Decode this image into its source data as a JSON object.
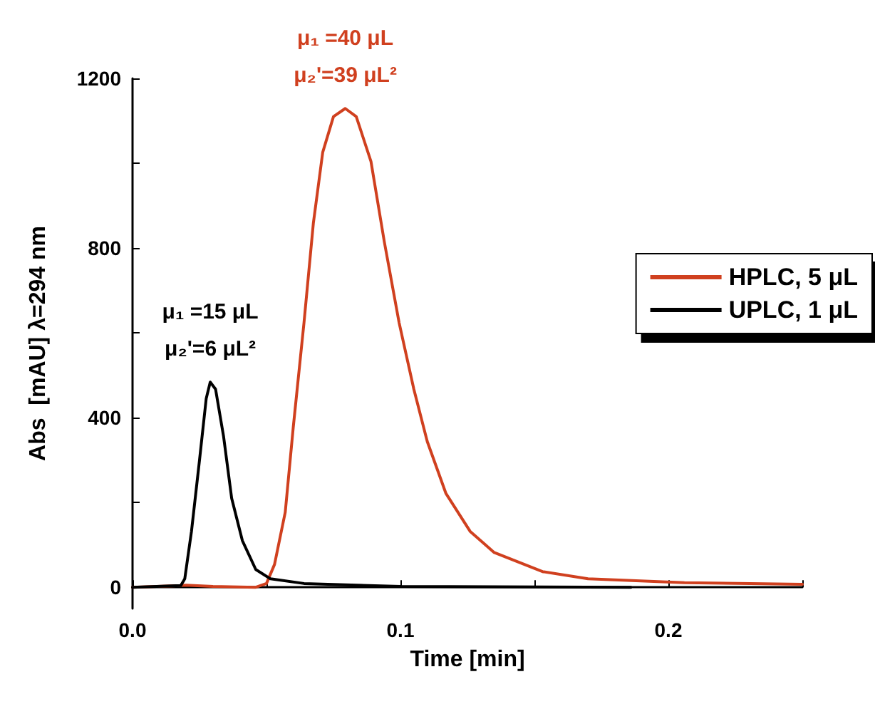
{
  "chart_data": {
    "type": "line",
    "xlabel": "Time [min]",
    "ylabel": "Abs  [mAU] λ=294 nm",
    "xlim": [
      0,
      0.25
    ],
    "xticks": [
      {
        "value": 0,
        "label": "0.0"
      },
      0.1,
      0.2,
      {
        "value": 0.05,
        "label": null
      },
      {
        "value": 0.15,
        "label": null
      },
      {
        "value": 0.25,
        "label": null
      }
    ],
    "ylim": [
      -50,
      1200
    ],
    "yticks": [
      0,
      400,
      800,
      1200,
      {
        "value": 200,
        "label": null
      },
      {
        "value": 600,
        "label": null
      },
      {
        "value": 1000,
        "label": null
      }
    ],
    "grid": false,
    "legend": "top right",
    "marker": "none",
    "line_style": "solid",
    "series": [
      {
        "name": "HPLC, 5 μL",
        "color": "#d0401f",
        "x": [
          0,
          0.018,
          0.02,
          0.03,
          0.046,
          0.05,
          0.053,
          0.057,
          0.06,
          0.064,
          0.0675,
          0.071,
          0.075,
          0.0794,
          0.0835,
          0.089,
          0.094,
          0.0995,
          0.105,
          0.11,
          0.117,
          0.126,
          0.135,
          0.153,
          0.17,
          0.206,
          0.25
        ],
        "values": [
          0,
          4,
          5,
          2,
          0,
          9,
          54,
          177,
          378,
          624,
          859,
          1026,
          1110,
          1129,
          1110,
          1004,
          814,
          624,
          467,
          344,
          221,
          132,
          82,
          37,
          20,
          11,
          7
        ]
      },
      {
        "name": "UPLC, 1 μL",
        "color": "#000000",
        "x": [
          0,
          0.018,
          0.0195,
          0.022,
          0.025,
          0.0275,
          0.029,
          0.031,
          0.034,
          0.037,
          0.041,
          0.046,
          0.0515,
          0.064,
          0.1,
          0.186
        ],
        "values": [
          0,
          4,
          20,
          132,
          300,
          445,
          484,
          467,
          355,
          210,
          110,
          42,
          20,
          9,
          2,
          0
        ]
      }
    ],
    "annotations": [
      {
        "text": "μ₁ =40 μL\nμ₂'=39 μL²",
        "x": 0.0794,
        "y": 1129
      },
      {
        "text": "μ₁ =15 μL\nμ₂'=6 μL²",
        "x": 0.029,
        "y": 484
      }
    ]
  }
}
